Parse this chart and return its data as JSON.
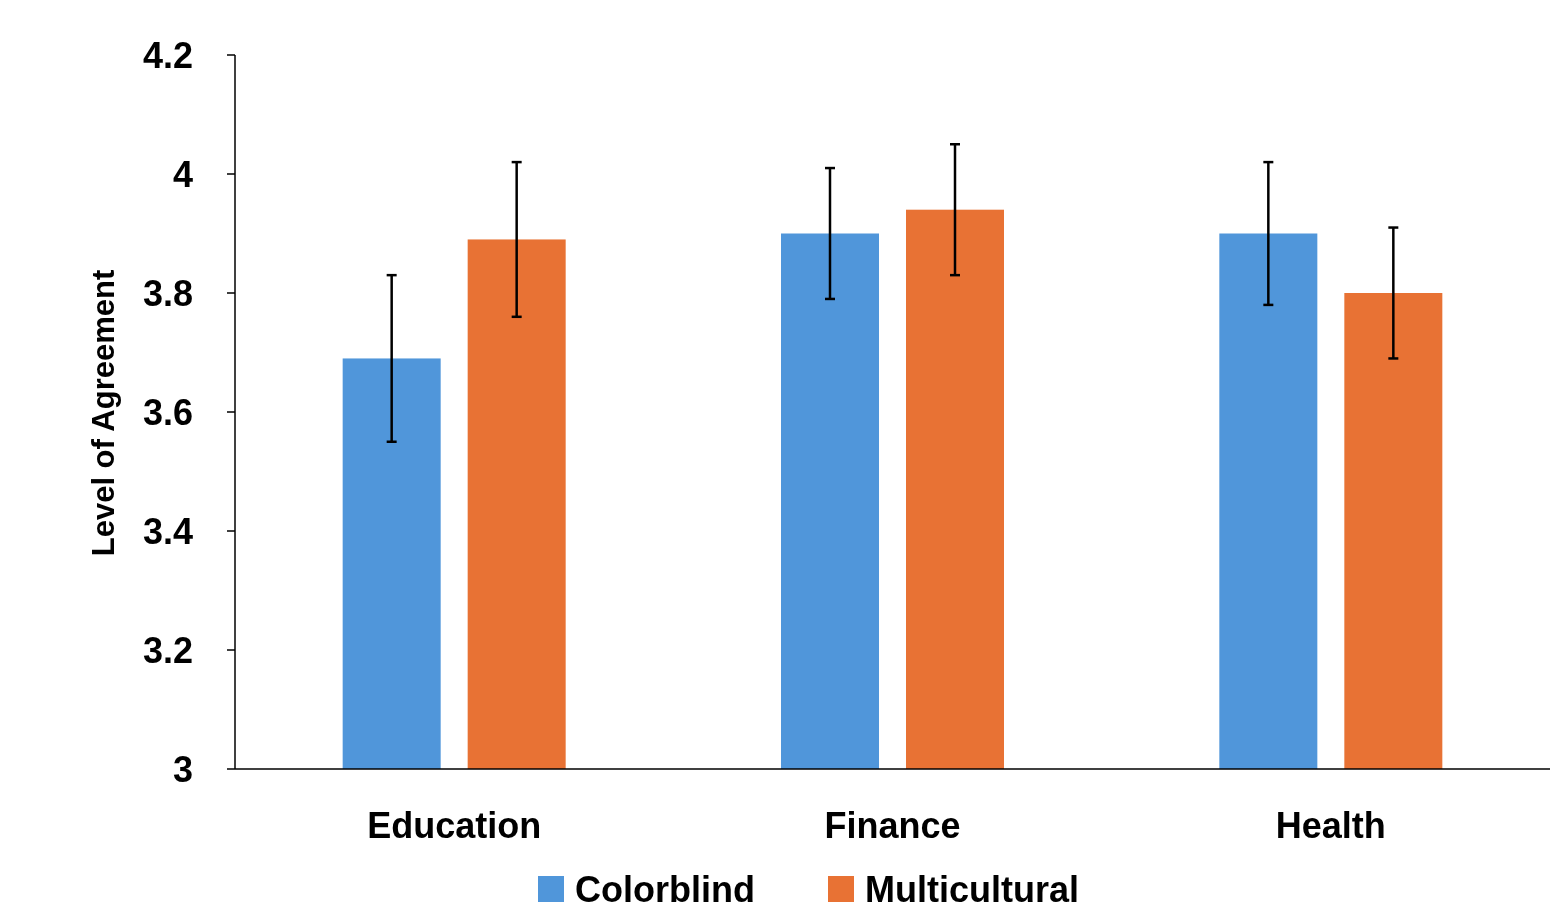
{
  "chart_data": {
    "type": "bar",
    "ylabel": "Level of Agreement",
    "categories": [
      "Education",
      "Finance",
      "Health"
    ],
    "series": [
      {
        "name": "Colorblind",
        "color": "#5096da",
        "values": [
          3.69,
          3.9,
          3.9
        ],
        "errors": [
          0.14,
          0.11,
          0.12
        ]
      },
      {
        "name": "Multicultural",
        "color": "#e87234",
        "values": [
          3.89,
          3.94,
          3.8
        ],
        "errors": [
          0.13,
          0.11,
          0.11
        ]
      }
    ],
    "ylim": [
      3,
      4.2
    ],
    "yticks": [
      3,
      3.2,
      3.4,
      3.6,
      3.8,
      4,
      4.2
    ],
    "grid": false,
    "legend": "bottom"
  }
}
